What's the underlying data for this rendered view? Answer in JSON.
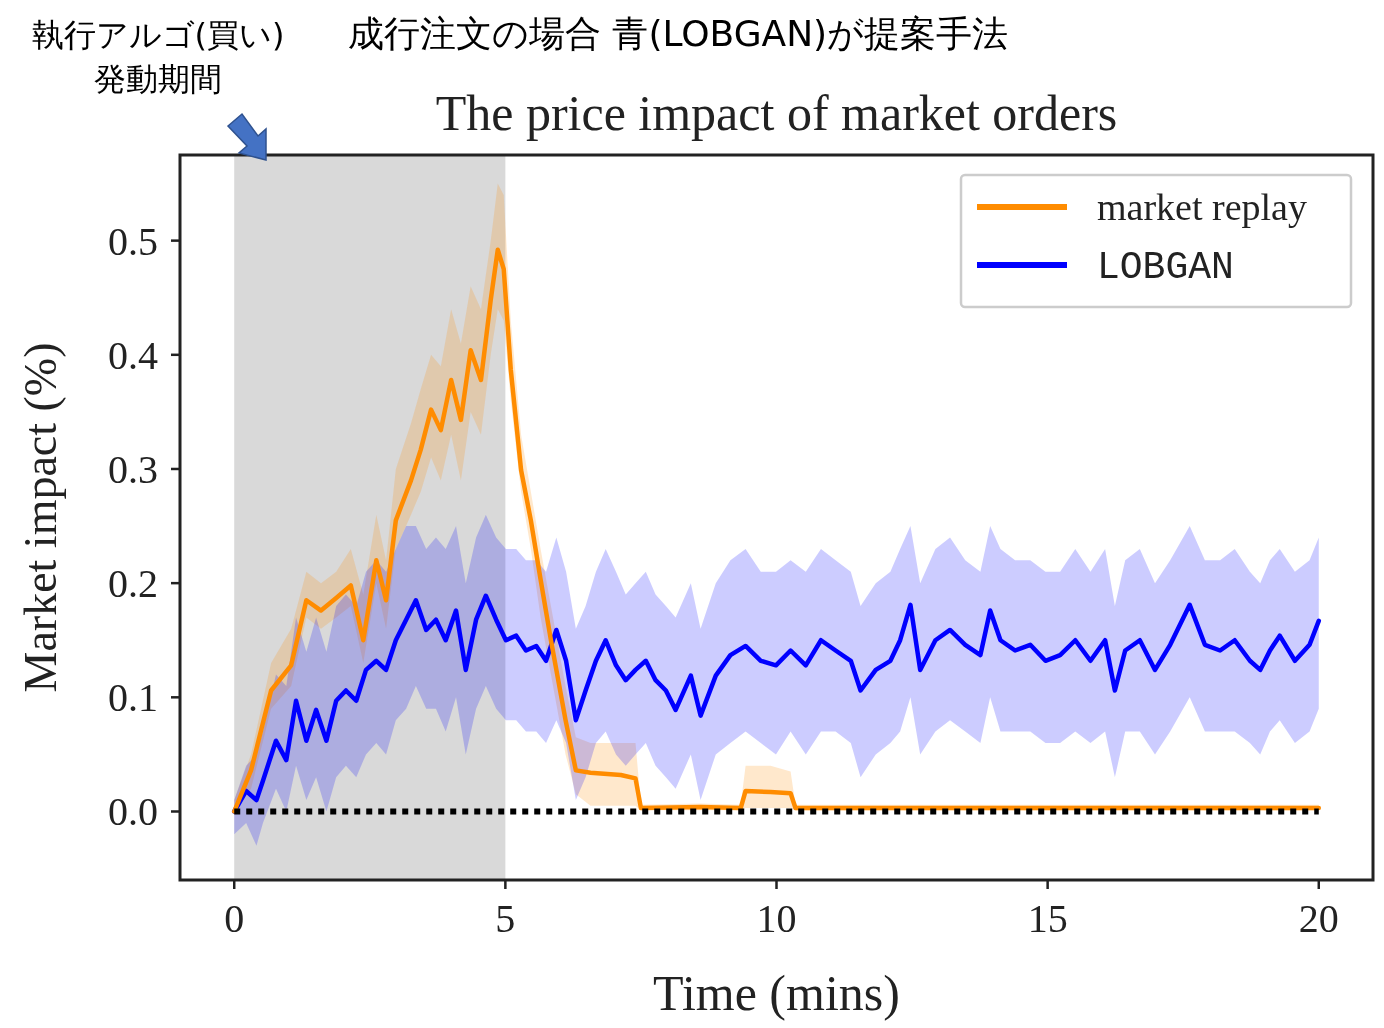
{
  "chart_data": {
    "type": "line",
    "title": "The price impact of market orders",
    "xlabel": "Time (mins)",
    "ylabel": "Market impact (%)",
    "annotations": [
      "執行アルゴ(買い)\n発動期間",
      "成行注文の場合 青(LOBGAN)が提案手法"
    ],
    "xlim": [
      -1,
      21
    ],
    "xticks": [
      0,
      5,
      10,
      15,
      20
    ],
    "ylim": [
      -0.06,
      0.575
    ],
    "yticks": [
      {
        "value": 0,
        "label": "0.0"
      },
      0.1,
      0.2,
      0.3,
      0.4,
      0.5
    ],
    "grid": false,
    "legend": "top right",
    "marker": "none",
    "line_style": "solid",
    "bands": [
      {
        "axis": "x",
        "from": 0,
        "to": 5,
        "color": "#d9d9d9"
      }
    ],
    "ref_lines": [
      {
        "axis": "y",
        "value": 0,
        "color": "#000000",
        "line_style": "dotted"
      }
    ],
    "series": [
      {
        "name": "market replay",
        "color": "#ff8c00",
        "x": [
          0,
          0.31,
          0.68,
          1.05,
          1.33,
          1.6,
          1.88,
          2.15,
          2.38,
          2.62,
          2.8,
          2.98,
          3.26,
          3.44,
          3.63,
          3.81,
          4.0,
          4.18,
          4.36,
          4.55,
          4.73,
          4.86,
          4.97,
          5.1,
          5.29,
          5.47,
          5.65,
          5.84,
          6.11,
          6.3,
          6.57,
          7.13,
          7.4,
          7.5,
          8.6,
          9.34,
          9.43,
          9.89,
          10.26,
          10.35,
          12.28,
          14.13,
          20
        ],
        "values": [
          0,
          0.036,
          0.106,
          0.128,
          0.185,
          0.176,
          0.187,
          0.198,
          0.15,
          0.22,
          0.185,
          0.255,
          0.29,
          0.317,
          0.352,
          0.334,
          0.378,
          0.343,
          0.404,
          0.378,
          0.448,
          0.492,
          0.475,
          0.387,
          0.299,
          0.255,
          0.203,
          0.15,
          0.08,
          0.036,
          0.034,
          0.032,
          0.029,
          0.003,
          0.004,
          0.003,
          0.018,
          0.017,
          0.016,
          0.003,
          0.003,
          0.003,
          0.003
        ],
        "lower": [
          0,
          0.02,
          0.09,
          0.11,
          0.17,
          0.16,
          0.17,
          0.18,
          0.13,
          0.2,
          0.16,
          0.23,
          0.26,
          0.28,
          0.31,
          0.29,
          0.33,
          0.29,
          0.35,
          0.33,
          0.4,
          0.44,
          0.43,
          0.36,
          0.28,
          0.23,
          0.17,
          0.12,
          0.05,
          0.015,
          0.005,
          0.005,
          0.005,
          0.001,
          0.001,
          0.001,
          0.003,
          0.003,
          0.003,
          0.001,
          0.001,
          0.001,
          0.001
        ],
        "upper": [
          0.01,
          0.05,
          0.13,
          0.16,
          0.21,
          0.2,
          0.21,
          0.23,
          0.19,
          0.26,
          0.22,
          0.3,
          0.34,
          0.37,
          0.4,
          0.39,
          0.44,
          0.41,
          0.46,
          0.44,
          0.5,
          0.55,
          0.54,
          0.43,
          0.33,
          0.28,
          0.23,
          0.18,
          0.11,
          0.065,
          0.06,
          0.06,
          0.06,
          0.006,
          0.007,
          0.006,
          0.04,
          0.04,
          0.035,
          0.006,
          0.006,
          0.006,
          0.006
        ]
      },
      {
        "name": "LOBGAN",
        "color": "#0000ff",
        "x": [
          0,
          0.22,
          0.41,
          0.53,
          0.77,
          0.96,
          1.14,
          1.33,
          1.51,
          1.7,
          1.88,
          2.06,
          2.25,
          2.43,
          2.62,
          2.8,
          2.98,
          3.17,
          3.35,
          3.54,
          3.72,
          3.9,
          4.09,
          4.27,
          4.46,
          4.64,
          4.83,
          5.01,
          5.2,
          5.38,
          5.57,
          5.75,
          5.94,
          6.12,
          6.3,
          6.48,
          6.67,
          6.85,
          7.04,
          7.22,
          7.4,
          7.59,
          7.77,
          7.96,
          8.14,
          8.42,
          8.6,
          8.88,
          9.15,
          9.43,
          9.71,
          9.99,
          10.26,
          10.54,
          10.82,
          11.09,
          11.37,
          11.55,
          11.83,
          12.1,
          12.28,
          12.47,
          12.65,
          12.93,
          13.2,
          13.48,
          13.76,
          13.94,
          14.13,
          14.4,
          14.68,
          14.96,
          15.23,
          15.51,
          15.79,
          16.06,
          16.24,
          16.43,
          16.7,
          16.98,
          17.26,
          17.62,
          17.9,
          18.18,
          18.45,
          18.73,
          18.92,
          19.1,
          19.28,
          19.56,
          19.83,
          20
        ],
        "values": [
          0,
          0.018,
          0.01,
          0.027,
          0.062,
          0.045,
          0.097,
          0.062,
          0.089,
          0.062,
          0.097,
          0.106,
          0.097,
          0.124,
          0.132,
          0.124,
          0.15,
          0.168,
          0.185,
          0.159,
          0.168,
          0.15,
          0.176,
          0.124,
          0.168,
          0.189,
          0.168,
          0.15,
          0.154,
          0.141,
          0.145,
          0.132,
          0.159,
          0.132,
          0.08,
          0.106,
          0.132,
          0.15,
          0.128,
          0.115,
          0.124,
          0.132,
          0.115,
          0.106,
          0.089,
          0.119,
          0.084,
          0.119,
          0.137,
          0.145,
          0.132,
          0.128,
          0.141,
          0.128,
          0.15,
          0.141,
          0.132,
          0.106,
          0.124,
          0.132,
          0.15,
          0.181,
          0.124,
          0.15,
          0.159,
          0.146,
          0.137,
          0.176,
          0.15,
          0.141,
          0.146,
          0.132,
          0.137,
          0.15,
          0.132,
          0.15,
          0.106,
          0.141,
          0.15,
          0.124,
          0.146,
          0.181,
          0.146,
          0.141,
          0.15,
          0.132,
          0.124,
          0.141,
          0.154,
          0.132,
          0.146,
          0.167
        ],
        "lower": [
          -0.02,
          -0.01,
          -0.03,
          -0.01,
          0.02,
          0.0,
          0.04,
          0.01,
          0.03,
          0.0,
          0.03,
          0.04,
          0.03,
          0.05,
          0.06,
          0.05,
          0.08,
          0.09,
          0.11,
          0.09,
          0.09,
          0.07,
          0.1,
          0.05,
          0.09,
          0.11,
          0.09,
          0.08,
          0.08,
          0.07,
          0.07,
          0.06,
          0.08,
          0.06,
          0.01,
          0.03,
          0.06,
          0.07,
          0.05,
          0.04,
          0.05,
          0.06,
          0.04,
          0.03,
          0.02,
          0.05,
          0.01,
          0.05,
          0.06,
          0.07,
          0.06,
          0.05,
          0.07,
          0.05,
          0.07,
          0.07,
          0.06,
          0.03,
          0.05,
          0.06,
          0.07,
          0.1,
          0.05,
          0.07,
          0.08,
          0.07,
          0.06,
          0.1,
          0.07,
          0.07,
          0.07,
          0.06,
          0.06,
          0.07,
          0.06,
          0.07,
          0.03,
          0.07,
          0.07,
          0.05,
          0.07,
          0.1,
          0.07,
          0.07,
          0.07,
          0.06,
          0.05,
          0.07,
          0.08,
          0.06,
          0.07,
          0.09
        ],
        "upper": [
          0.01,
          0.04,
          0.05,
          0.07,
          0.12,
          0.11,
          0.17,
          0.14,
          0.17,
          0.14,
          0.18,
          0.19,
          0.18,
          0.21,
          0.22,
          0.21,
          0.23,
          0.25,
          0.25,
          0.23,
          0.24,
          0.23,
          0.25,
          0.2,
          0.24,
          0.26,
          0.24,
          0.23,
          0.23,
          0.22,
          0.22,
          0.21,
          0.24,
          0.21,
          0.16,
          0.18,
          0.21,
          0.23,
          0.21,
          0.19,
          0.2,
          0.21,
          0.19,
          0.18,
          0.17,
          0.2,
          0.16,
          0.2,
          0.22,
          0.23,
          0.21,
          0.21,
          0.22,
          0.21,
          0.23,
          0.22,
          0.21,
          0.18,
          0.2,
          0.21,
          0.23,
          0.25,
          0.2,
          0.23,
          0.24,
          0.22,
          0.21,
          0.25,
          0.23,
          0.22,
          0.22,
          0.21,
          0.21,
          0.23,
          0.21,
          0.23,
          0.18,
          0.22,
          0.23,
          0.2,
          0.22,
          0.25,
          0.22,
          0.22,
          0.23,
          0.21,
          0.2,
          0.22,
          0.23,
          0.21,
          0.22,
          0.24
        ]
      }
    ]
  }
}
